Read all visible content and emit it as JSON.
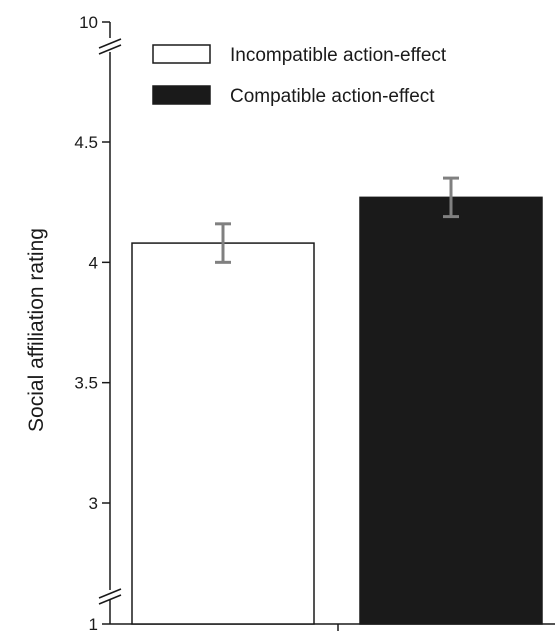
{
  "chart_data": {
    "type": "bar",
    "ylabel": "Social affiliation rating",
    "categories": [
      "Incompatible action-effect",
      "Compatible action-effect"
    ],
    "values": [
      4.08,
      4.27
    ],
    "errors": [
      0.08,
      0.08
    ],
    "bar_colors": [
      "#ffffff",
      "#1a1a1a"
    ],
    "error_color": "#808080",
    "axis": {
      "broken": true,
      "segments": [
        [
          3,
          4.5
        ]
      ],
      "ticks": [
        {
          "value": 1,
          "label": "1",
          "kind": "bottom"
        },
        {
          "value": 3,
          "label": "3",
          "kind": "main"
        },
        {
          "value": 3.5,
          "label": "3.5",
          "kind": "main"
        },
        {
          "value": 4,
          "label": "4",
          "kind": "main"
        },
        {
          "value": 4.5,
          "label": "4.5",
          "kind": "main"
        },
        {
          "value": 10,
          "label": "10",
          "kind": "top"
        }
      ]
    },
    "legend": {
      "position": "top-right",
      "entries": [
        {
          "label": "Incompatible action-effect",
          "fill": "#ffffff"
        },
        {
          "label": "Compatible action-effect",
          "fill": "#1a1a1a"
        }
      ]
    }
  }
}
